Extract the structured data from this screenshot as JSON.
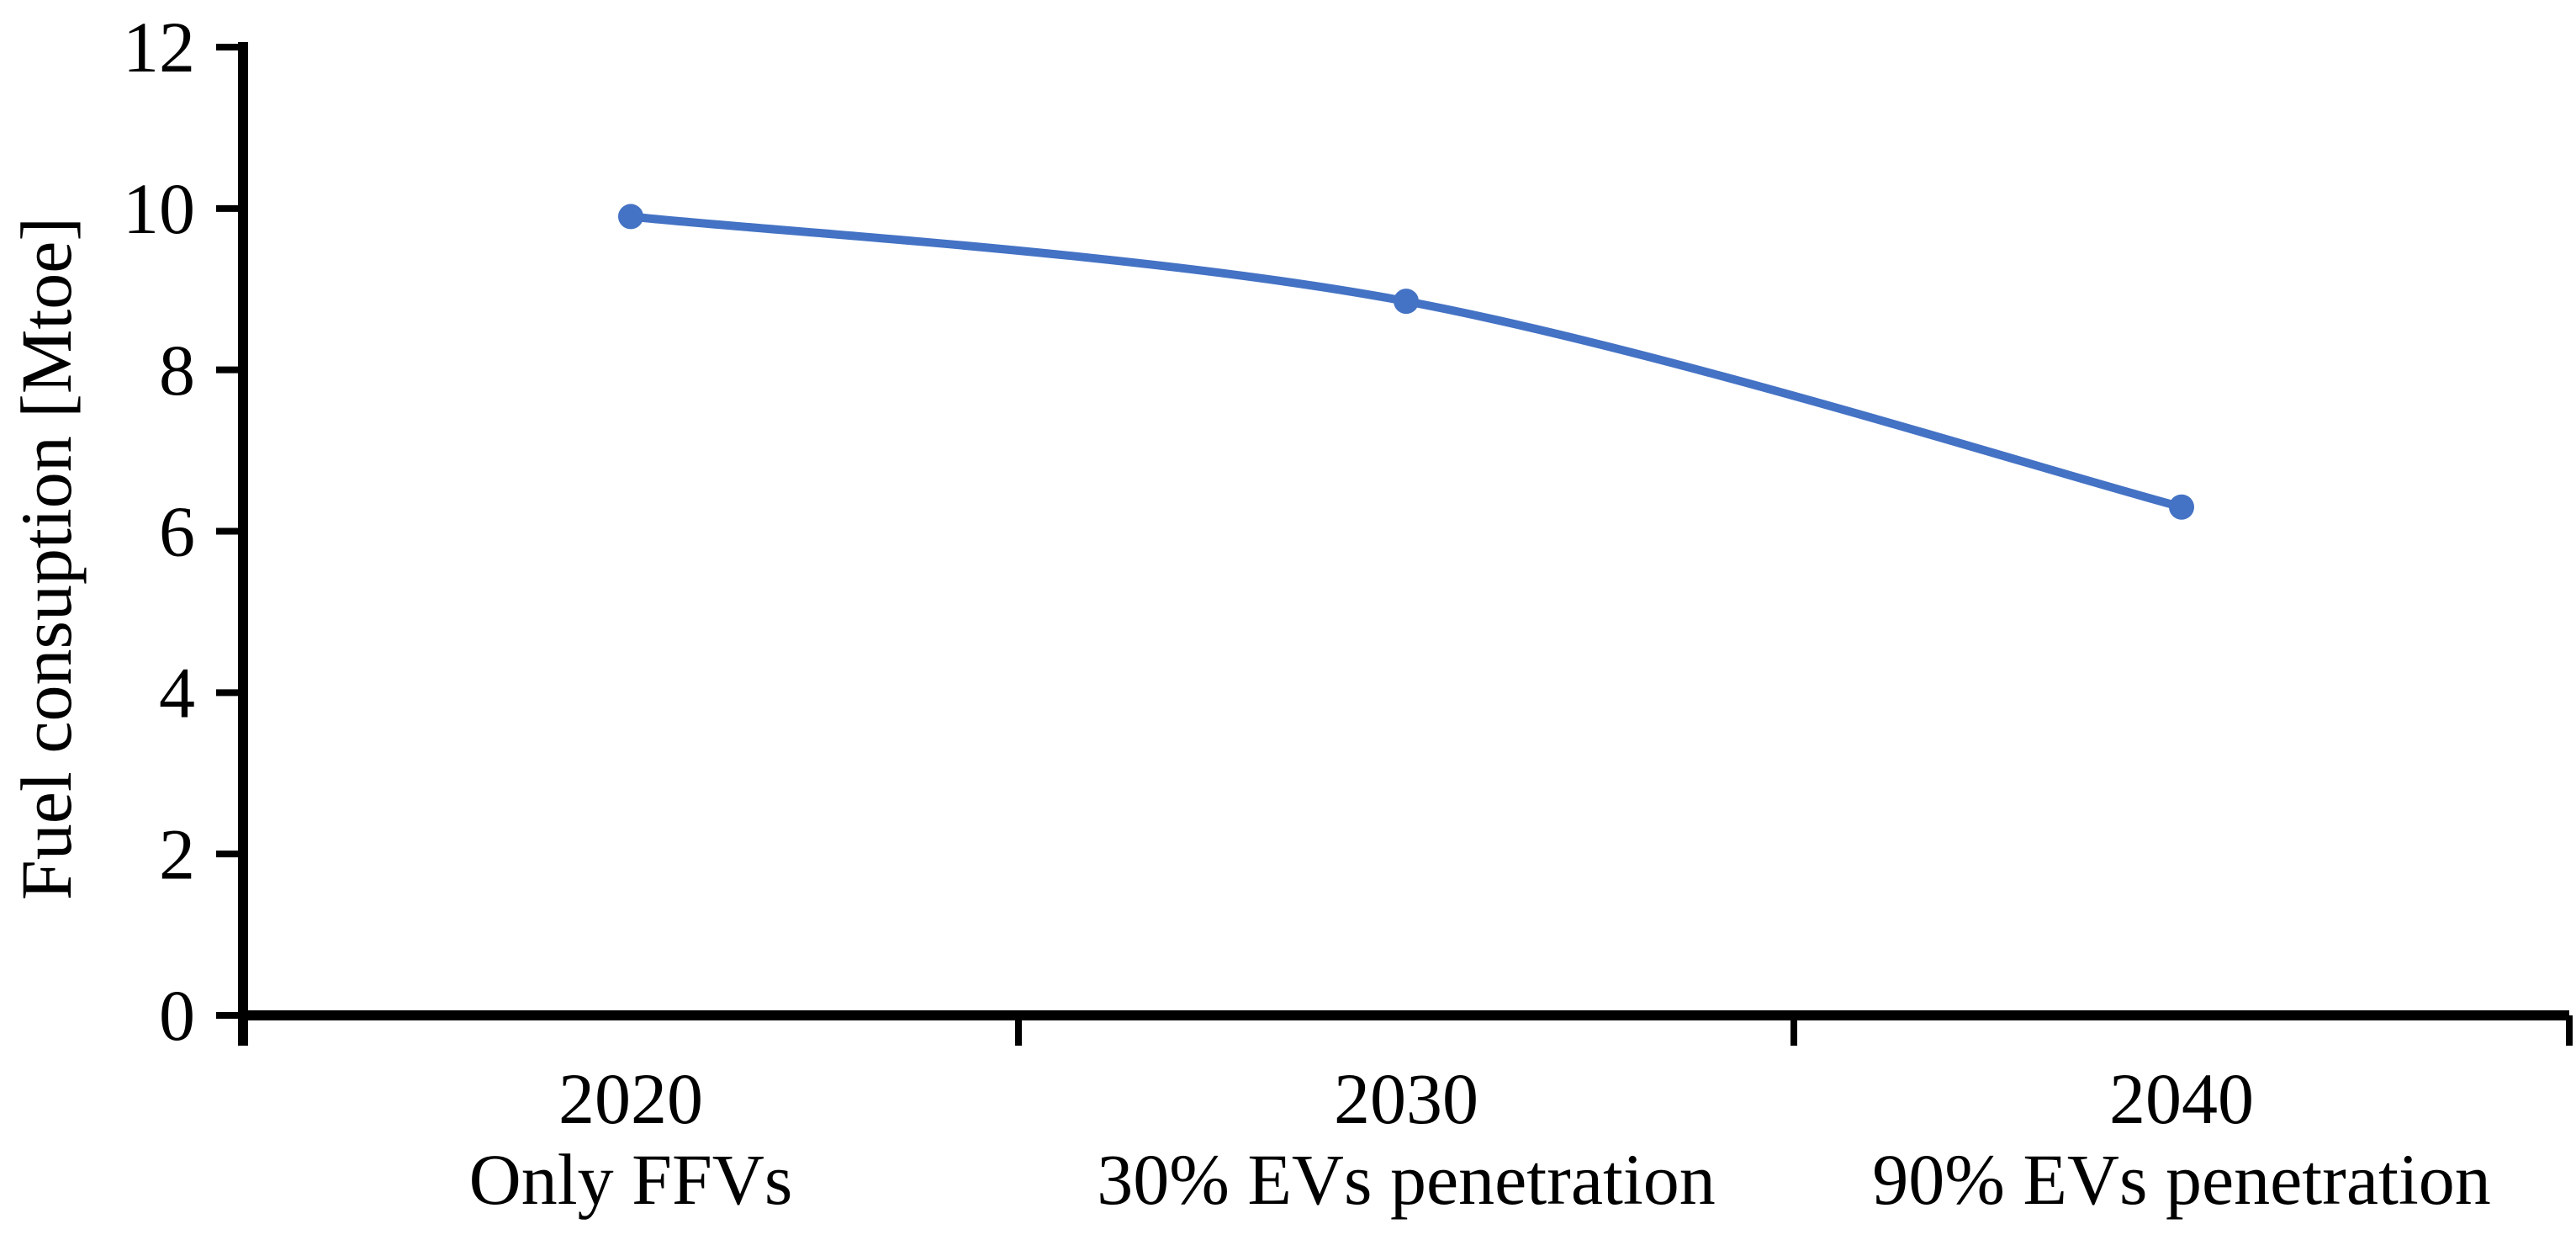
{
  "chart_data": {
    "type": "line",
    "title": "",
    "ylabel": "Fuel consuption [Mtoe]",
    "xlabel": "",
    "ylim": [
      0,
      12
    ],
    "yticks": [
      0,
      2,
      4,
      6,
      8,
      10,
      12
    ],
    "grid": false,
    "legend_position": "none",
    "axis_color": "#000000",
    "background_color": "#ffffff",
    "categories": [
      {
        "year": "2020",
        "scenario": "Only FFVs"
      },
      {
        "year": "2030",
        "scenario": "30% EVs penetration"
      },
      {
        "year": "2040",
        "scenario": "90% EVs penetration"
      }
    ],
    "series": [
      {
        "values": [
          9.9,
          8.85,
          6.3
        ],
        "color": "#4472C4",
        "marker": "circle",
        "smooth": true
      }
    ]
  }
}
